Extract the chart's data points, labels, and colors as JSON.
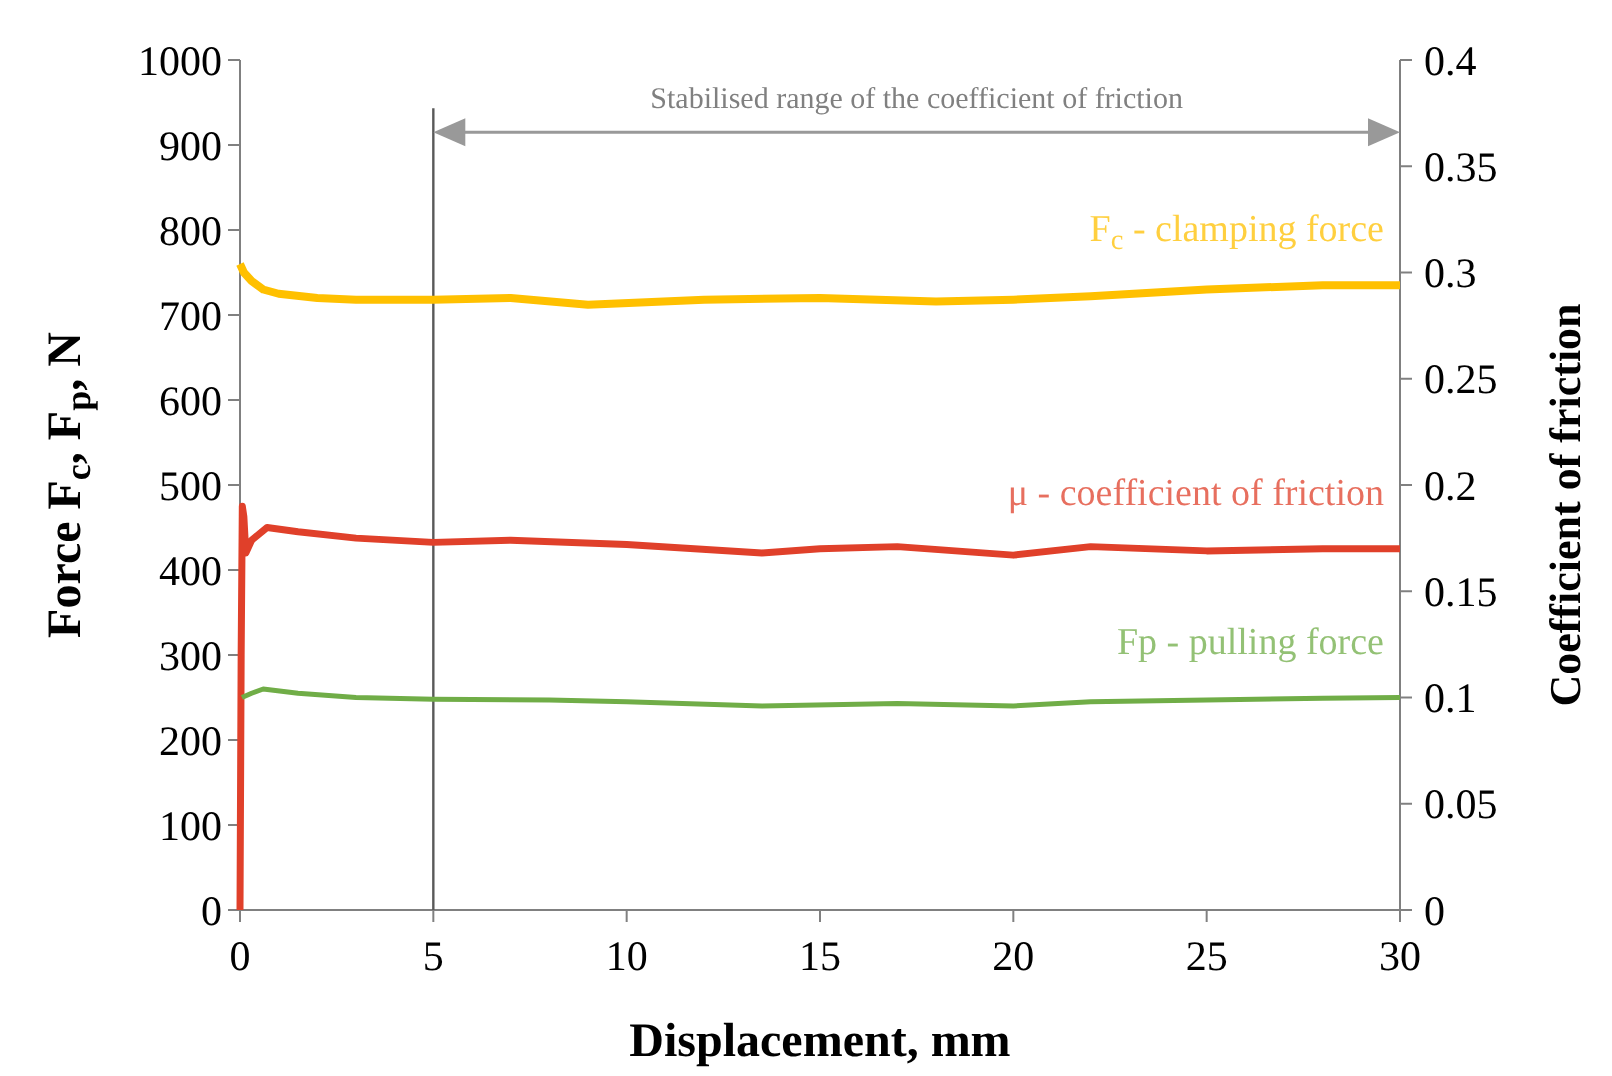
{
  "chart_data": {
    "type": "line",
    "xlabel": "Displacement, mm",
    "ylabel": "Force  F$_{c}$, F$_{p}$, N",
    "y2label": "Coefficient of friction",
    "xlim": [
      0,
      30
    ],
    "xticks": [
      0,
      5,
      10,
      15,
      20,
      25,
      30
    ],
    "ylim": [
      0,
      1000
    ],
    "yticks": [
      0,
      100,
      200,
      300,
      400,
      500,
      600,
      700,
      800,
      900,
      1000
    ],
    "y2lim": [
      0,
      0.4
    ],
    "y2ticks": [
      0,
      0.05,
      0.1,
      0.15,
      0.2,
      0.25,
      0.3,
      0.35,
      0.4
    ],
    "grid": false,
    "marker": "none",
    "line_style": "solid",
    "ref_lines": [
      {
        "axis": "x",
        "value": 5,
        "color": "#595959"
      }
    ],
    "annotations": [
      "Stabilised range of the coefficient of friction"
    ],
    "series": [
      {
        "name": "F$_{c}$ - clamping force",
        "color": "#ffc000",
        "x": [
          0,
          0.1,
          0.3,
          0.6,
          1,
          2,
          3,
          5,
          7,
          9,
          12,
          15,
          18,
          20,
          22,
          25,
          28,
          30
        ],
        "values": [
          760,
          750,
          740,
          730,
          725,
          720,
          718,
          718,
          720,
          712,
          718,
          720,
          716,
          718,
          722,
          730,
          735,
          735
        ]
      },
      {
        "name": "μ - coefficient of friction",
        "color": "#e0402a",
        "axis": "y2",
        "x": [
          0,
          0.03,
          0.06,
          0.1,
          0.15,
          0.3,
          0.7,
          1.5,
          3,
          5,
          7,
          10,
          13.5,
          15,
          17,
          20,
          22,
          25,
          28,
          30
        ],
        "values": [
          0,
          0.12,
          0.19,
          0.185,
          0.168,
          0.174,
          0.18,
          0.178,
          0.175,
          0.173,
          0.174,
          0.172,
          0.168,
          0.17,
          0.171,
          0.167,
          0.171,
          0.169,
          0.17,
          0.17
        ]
      },
      {
        "name": "Fp - pulling force",
        "color": "#70ad47",
        "x": [
          0.05,
          0.3,
          0.6,
          1.5,
          3,
          5,
          8,
          10,
          13.5,
          17,
          20,
          22,
          25,
          28,
          30
        ],
        "values": [
          250,
          255,
          260,
          255,
          250,
          248,
          247,
          245,
          240,
          243,
          240,
          245,
          247,
          249,
          250
        ]
      }
    ]
  }
}
